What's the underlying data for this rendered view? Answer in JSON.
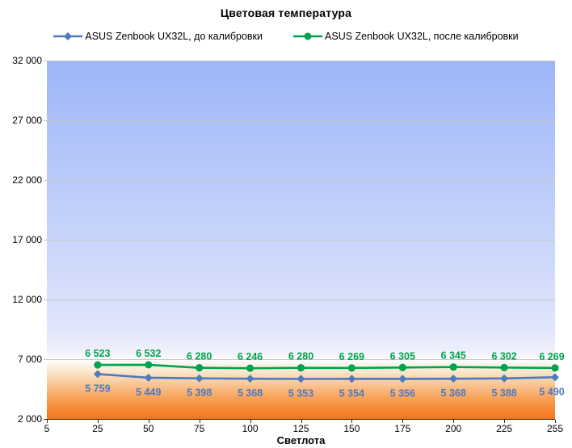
{
  "chart_data": {
    "type": "line",
    "title": "Цветовая температура",
    "xlabel": "Светлота",
    "ylabel": "",
    "categories": [
      5,
      25,
      50,
      75,
      100,
      125,
      150,
      175,
      200,
      225,
      255
    ],
    "yticks": [
      2000,
      7000,
      12000,
      17000,
      22000,
      27000,
      32000
    ],
    "ylim": [
      2000,
      32000
    ],
    "grid": "horizontal",
    "legend_position": "top",
    "plot_background": "vertical gradient blue (cool) to white to orange (warm), mimicking color temperature",
    "series": [
      {
        "name": "ASUS Zenbook UX32L, до калибровки",
        "color": "#4d7ac1",
        "marker": "diamond",
        "label_position": "below",
        "values": [
          null,
          5759,
          5449,
          5398,
          5368,
          5353,
          5354,
          5356,
          5368,
          5388,
          5490
        ]
      },
      {
        "name": "ASUS Zenbook UX32L, после калибровки",
        "color": "#00a34e",
        "marker": "circle",
        "label_position": "above",
        "values": [
          null,
          6523,
          6532,
          6280,
          6246,
          6280,
          6269,
          6305,
          6345,
          6302,
          6269
        ]
      }
    ]
  },
  "colors": {
    "gridline": "#c6c6c3",
    "axis": "#2b2b2b",
    "background_top": "#9db6f9",
    "background_middle": "#ffffff",
    "background_bottom": "#f4751b",
    "series_before": "#4d7ac1",
    "series_after": "#00a34e"
  }
}
